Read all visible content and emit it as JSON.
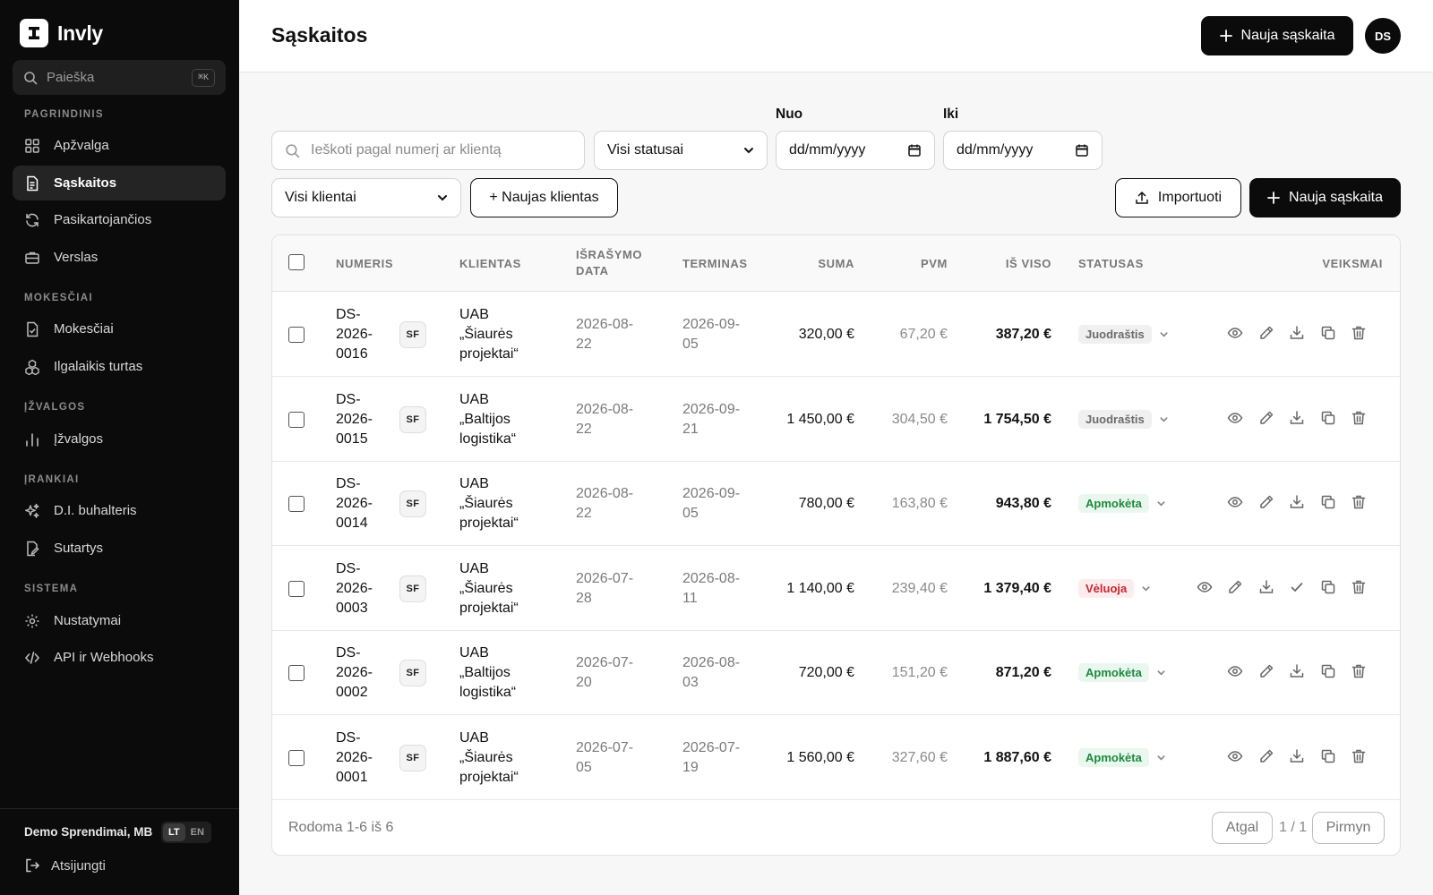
{
  "sidebar": {
    "brand": "Invly",
    "search_placeholder": "Paieška",
    "search_shortcut": "⌘K",
    "sections": [
      {
        "label": "PAGRINDINIS",
        "items": [
          "Apžvalga",
          "Sąskaitos",
          "Pasikartojančios",
          "Verslas"
        ]
      },
      {
        "label": "MOKESČIAI",
        "items": [
          "Mokesčiai",
          "Ilgalaikis turtas"
        ]
      },
      {
        "label": "ĮŽVALGOS",
        "items": [
          "Įžvalgos"
        ]
      },
      {
        "label": "ĮRANKIAI",
        "items": [
          "D.I. buhalteris",
          "Sutartys"
        ]
      },
      {
        "label": "SISTEMA",
        "items": [
          "Nustatymai",
          "API ir Webhooks"
        ]
      }
    ],
    "active_item": "Sąskaitos",
    "company": "Demo Sprendimai, MB",
    "lang_active": "LT",
    "lang_other": "EN",
    "logout": "Atsijungti"
  },
  "header": {
    "title": "Sąskaitos",
    "new_invoice": "Nauja sąskaita",
    "avatar_initials": "DS"
  },
  "filters": {
    "search_placeholder": "Ieškoti pagal numerį ar klientą",
    "status_value": "Visi statusai",
    "from_label": "Nuo",
    "to_label": "Iki",
    "date_placeholder": "dd/mm/yyyy",
    "client_value": "Visi klientai",
    "new_client": "+ Naujas klientas",
    "import": "Importuoti",
    "new_invoice": "Nauja sąskaita"
  },
  "table": {
    "headers": {
      "number": "NUMERIS",
      "client": "KLIENTAS",
      "issue_date_1": "IŠRAŠYMO",
      "issue_date_2": "DATA",
      "due": "TERMINAS",
      "amount": "SUMA",
      "vat": "PVM",
      "total": "IŠ VISO",
      "status": "STATUSAS",
      "actions": "VEIKSMAI"
    },
    "rows": [
      {
        "n1": "DS-",
        "n2": "2026-",
        "n3": "0016",
        "tag": "SF",
        "c1": "UAB",
        "c2": "„Šiaurės",
        "c3": "projektai“",
        "d1": "2026-08-",
        "d2": "22",
        "t1": "2026-09-",
        "t2": "05",
        "amount": "320,00 €",
        "vat": "67,20 €",
        "total": "387,20 €",
        "status": "Juodraštis",
        "status_kind": "draft"
      },
      {
        "n1": "DS-",
        "n2": "2026-",
        "n3": "0015",
        "tag": "SF",
        "c1": "UAB",
        "c2": "„Baltijos",
        "c3": "logistika“",
        "d1": "2026-08-",
        "d2": "22",
        "t1": "2026-09-",
        "t2": "21",
        "amount": "1 450,00 €",
        "vat": "304,50 €",
        "total": "1 754,50 €",
        "status": "Juodraštis",
        "status_kind": "draft"
      },
      {
        "n1": "DS-",
        "n2": "2026-",
        "n3": "0014",
        "tag": "SF",
        "c1": "UAB",
        "c2": "„Šiaurės",
        "c3": "projektai“",
        "d1": "2026-08-",
        "d2": "22",
        "t1": "2026-09-",
        "t2": "05",
        "amount": "780,00 €",
        "vat": "163,80 €",
        "total": "943,80 €",
        "status": "Apmokėta",
        "status_kind": "paid"
      },
      {
        "n1": "DS-",
        "n2": "2026-",
        "n3": "0003",
        "tag": "SF",
        "c1": "UAB",
        "c2": "„Šiaurės",
        "c3": "projektai“",
        "d1": "2026-07-",
        "d2": "28",
        "t1": "2026-08-",
        "t2": "11",
        "amount": "1 140,00 €",
        "vat": "239,40 €",
        "total": "1 379,40 €",
        "status": "Vėluoja",
        "status_kind": "late"
      },
      {
        "n1": "DS-",
        "n2": "2026-",
        "n3": "0002",
        "tag": "SF",
        "c1": "UAB",
        "c2": "„Baltijos",
        "c3": "logistika“",
        "d1": "2026-07-",
        "d2": "20",
        "t1": "2026-08-",
        "t2": "03",
        "amount": "720,00 €",
        "vat": "151,20 €",
        "total": "871,20 €",
        "status": "Apmokėta",
        "status_kind": "paid"
      },
      {
        "n1": "DS-",
        "n2": "2026-",
        "n3": "0001",
        "tag": "SF",
        "c1": "UAB",
        "c2": "„Šiaurės",
        "c3": "projektai“",
        "d1": "2026-07-",
        "d2": "05",
        "t1": "2026-07-",
        "t2": "19",
        "amount": "1 560,00 €",
        "vat": "327,60 €",
        "total": "1 887,60 €",
        "status": "Apmokėta",
        "status_kind": "paid"
      }
    ],
    "footer_text": "Rodoma 1-6 iš 6",
    "prev": "Atgal",
    "page": "1 / 1",
    "next": "Pirmyn"
  },
  "colors": {
    "sidebar_bg": "#0b0b0b",
    "accent": "#0b0b0b",
    "paid": "#1d8a3f",
    "late": "#c9252f",
    "draft": "#6b6b6b"
  }
}
